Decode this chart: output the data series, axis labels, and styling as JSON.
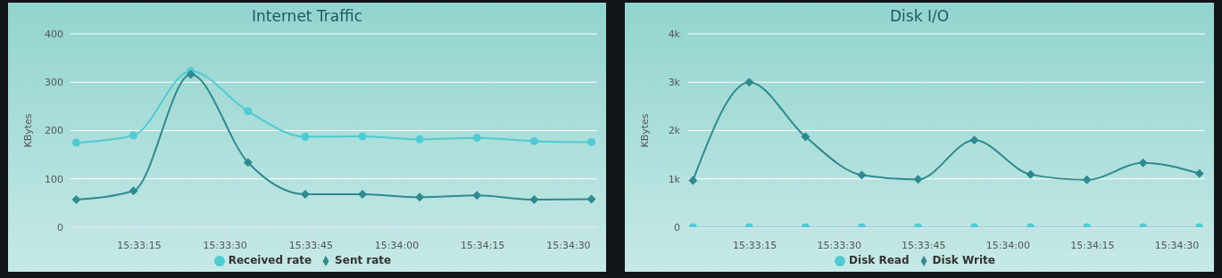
{
  "chart_data": [
    {
      "type": "line",
      "title": "Internet Traffic",
      "ylabel": "KBytes",
      "x": [
        15.551111,
        15.553889,
        15.556667,
        15.559444,
        15.562222,
        15.565,
        15.567778,
        15.570556,
        15.573333,
        15.576111
      ],
      "series": [
        {
          "name": "Received rate",
          "color": "#4ecbd3",
          "marker": "circle",
          "values": [
            175,
            190,
            323,
            240,
            187,
            188,
            182,
            185,
            178,
            176
          ]
        },
        {
          "name": "Sent rate",
          "color": "#2e8a8f",
          "marker": "diamond",
          "values": [
            57,
            75,
            316,
            134,
            68,
            68,
            62,
            66,
            57,
            58
          ]
        }
      ],
      "xlim": [
        15.550833,
        15.576389
      ],
      "xticks": [
        {
          "value": 15.554167,
          "label": "15:33:15"
        },
        {
          "value": 15.558333,
          "label": "15:33:30"
        },
        {
          "value": 15.5625,
          "label": "15:33:45"
        },
        {
          "value": 15.566667,
          "label": "15:34:00"
        },
        {
          "value": 15.570833,
          "label": "15:34:15"
        },
        {
          "value": 15.575,
          "label": "15:34:30"
        }
      ],
      "ylim": [
        0,
        400
      ],
      "yticks": [
        0,
        100,
        200,
        300,
        400
      ],
      "grid": "y",
      "legend": "bottom",
      "line_style": "solid"
    },
    {
      "type": "line",
      "title": "Disk I/O",
      "ylabel": "KBytes",
      "x": [
        15.551111,
        15.553889,
        15.556667,
        15.559444,
        15.562222,
        15.565,
        15.567778,
        15.570556,
        15.573333,
        15.576111
      ],
      "series": [
        {
          "name": "Disk Read",
          "color": "#4ecbd3",
          "marker": "circle",
          "values": [
            0,
            0,
            0,
            0,
            0,
            0,
            0,
            0,
            0,
            0
          ]
        },
        {
          "name": "Disk Write",
          "color": "#2e8a8f",
          "marker": "diamond",
          "values": [
            970,
            3000,
            1870,
            1080,
            990,
            1800,
            1090,
            980,
            1330,
            1110
          ]
        }
      ],
      "xlim": [
        15.550833,
        15.576389
      ],
      "xticks": [
        {
          "value": 15.554167,
          "label": "15:33:15"
        },
        {
          "value": 15.558333,
          "label": "15:33:30"
        },
        {
          "value": 15.5625,
          "label": "15:33:45"
        },
        {
          "value": 15.566667,
          "label": "15:34:00"
        },
        {
          "value": 15.570833,
          "label": "15:34:15"
        },
        {
          "value": 15.575,
          "label": "15:34:30"
        }
      ],
      "ylim": [
        0,
        4000
      ],
      "yticks": [
        0,
        {
          "value": 1000,
          "label": "1k"
        },
        {
          "value": 2000,
          "label": "2k"
        },
        {
          "value": 3000,
          "label": "3k"
        },
        {
          "value": 4000,
          "label": "4k"
        }
      ],
      "grid": "y",
      "legend": "bottom",
      "line_style": "solid"
    }
  ]
}
